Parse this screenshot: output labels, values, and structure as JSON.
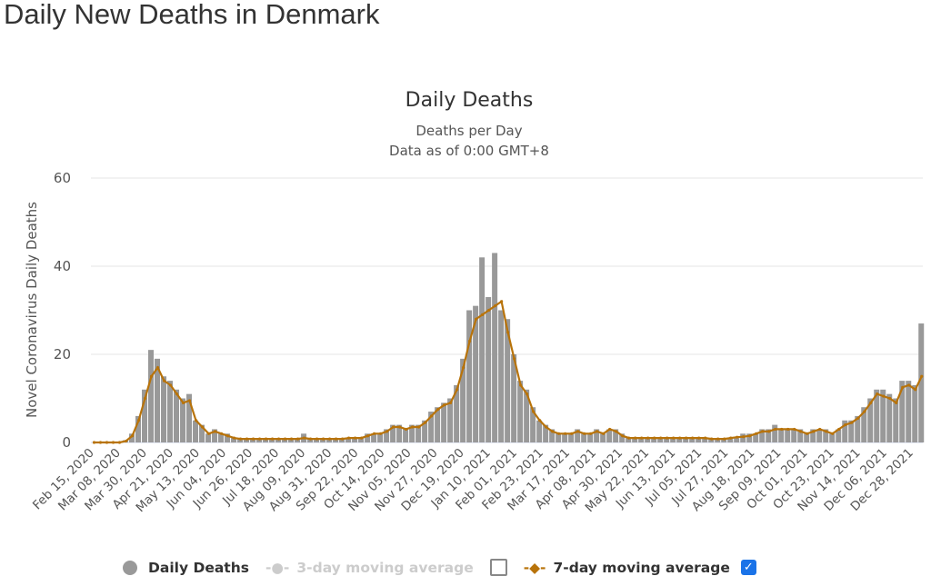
{
  "page": {
    "title": "Daily New Deaths in Denmark"
  },
  "chart_data": {
    "type": "bar",
    "title": "Daily Deaths",
    "subtitle": [
      "Deaths per Day",
      "Data as of 0:00 GMT+8"
    ],
    "xlabel": "",
    "ylabel": "Novel Coronavirus Daily Deaths",
    "ylim": [
      0,
      60
    ],
    "yticks": [
      "0",
      "20",
      "40",
      "60"
    ],
    "grid": true,
    "legend_position": "bottom",
    "start_date": "2020-02-15",
    "sample_interval_days": 5.3,
    "xtick_labels": [
      "Feb 15, 2020",
      "Mar 08, 2020",
      "Mar 30, 2020",
      "Apr 21, 2020",
      "May 13, 2020",
      "Jun 04, 2020",
      "Jun 26, 2020",
      "Jul 18, 2020",
      "Aug 09, 2020",
      "Aug 31, 2020",
      "Sep 22, 2020",
      "Oct 14, 2020",
      "Nov 05, 2020",
      "Nov 27, 2020",
      "Dec 19, 2020",
      "Jan 10, 2021",
      "Feb 01, 2021",
      "Feb 23, 2021",
      "Mar 17, 2021",
      "Apr 08, 2021",
      "Apr 30, 2021",
      "May 22, 2021",
      "Jun 13, 2021",
      "Jul 05, 2021",
      "Jul 27, 2021",
      "Aug 18, 2021",
      "Sep 09, 2021",
      "Oct 01, 2021",
      "Oct 23, 2021",
      "Nov 14, 2021",
      "Dec 06, 2021",
      "Dec 28, 2021"
    ],
    "series": [
      {
        "name": "Daily Deaths",
        "color": "#999999",
        "values": [
          0,
          0,
          0,
          0,
          0,
          0.5,
          2,
          6,
          12,
          21,
          19,
          15,
          14,
          12,
          10,
          11,
          5,
          4,
          2,
          3,
          2,
          2,
          1,
          1,
          1,
          1,
          1,
          1,
          1,
          1,
          1,
          1,
          1,
          2,
          1,
          1,
          1,
          1,
          1,
          1,
          1,
          1,
          1,
          2,
          2,
          2,
          3,
          4,
          4,
          3,
          4,
          4,
          5,
          7,
          8,
          9,
          10,
          13,
          19,
          30,
          31,
          42,
          33,
          43,
          30,
          28,
          20,
          14,
          12,
          8,
          5,
          4,
          3,
          2,
          2,
          2,
          3,
          2,
          2,
          3,
          2,
          3,
          3,
          2,
          1,
          1,
          1,
          1,
          1,
          1,
          1,
          1,
          1,
          1,
          1,
          1,
          1,
          1,
          1,
          1,
          1,
          1,
          2,
          2,
          2,
          3,
          3,
          4,
          3,
          3,
          3,
          3,
          2,
          3,
          3,
          3,
          2,
          3,
          5,
          5,
          6,
          8,
          10,
          12,
          12,
          11,
          10,
          14,
          14,
          13,
          27
        ]
      },
      {
        "name": "3-day moving average",
        "color": "#cccccc",
        "enabled": false,
        "values": []
      },
      {
        "name": "7-day moving average",
        "color": "#b8730a",
        "enabled": true,
        "values": [
          0,
          0,
          0,
          0,
          0,
          0.3,
          1.5,
          5,
          10,
          15,
          17,
          14,
          13,
          11,
          9,
          9.5,
          5,
          3.5,
          2,
          2.5,
          2,
          1.5,
          1,
          0.8,
          0.8,
          0.8,
          0.8,
          0.8,
          0.8,
          0.8,
          0.8,
          0.8,
          0.8,
          1,
          0.8,
          0.8,
          0.8,
          0.8,
          0.8,
          0.8,
          1,
          1,
          1,
          1.5,
          2,
          2,
          2.5,
          3.5,
          3.5,
          3,
          3.5,
          3.5,
          4.5,
          6,
          7.5,
          8.5,
          9,
          12,
          17,
          23,
          28,
          29,
          30,
          31,
          32,
          25,
          19,
          13,
          11,
          7,
          5,
          3.5,
          2.5,
          2,
          2,
          2,
          2.5,
          2,
          2,
          2.5,
          2,
          3,
          2.5,
          1.5,
          1,
          1,
          1,
          1,
          1,
          1,
          1,
          1,
          1,
          1,
          1,
          1,
          1,
          0.8,
          0.8,
          0.8,
          1,
          1.2,
          1.3,
          1.5,
          2,
          2.5,
          2.5,
          3,
          3,
          3,
          3,
          2.5,
          2,
          2.5,
          3,
          2.5,
          2,
          3,
          4,
          4.5,
          5.5,
          7,
          9,
          11,
          10.5,
          10,
          9,
          12.5,
          13,
          12,
          15
        ]
      }
    ]
  },
  "legend": {
    "daily": "Daily Deaths",
    "ma3": "3-day moving average",
    "ma7": "7-day moving average",
    "check": "✓"
  }
}
